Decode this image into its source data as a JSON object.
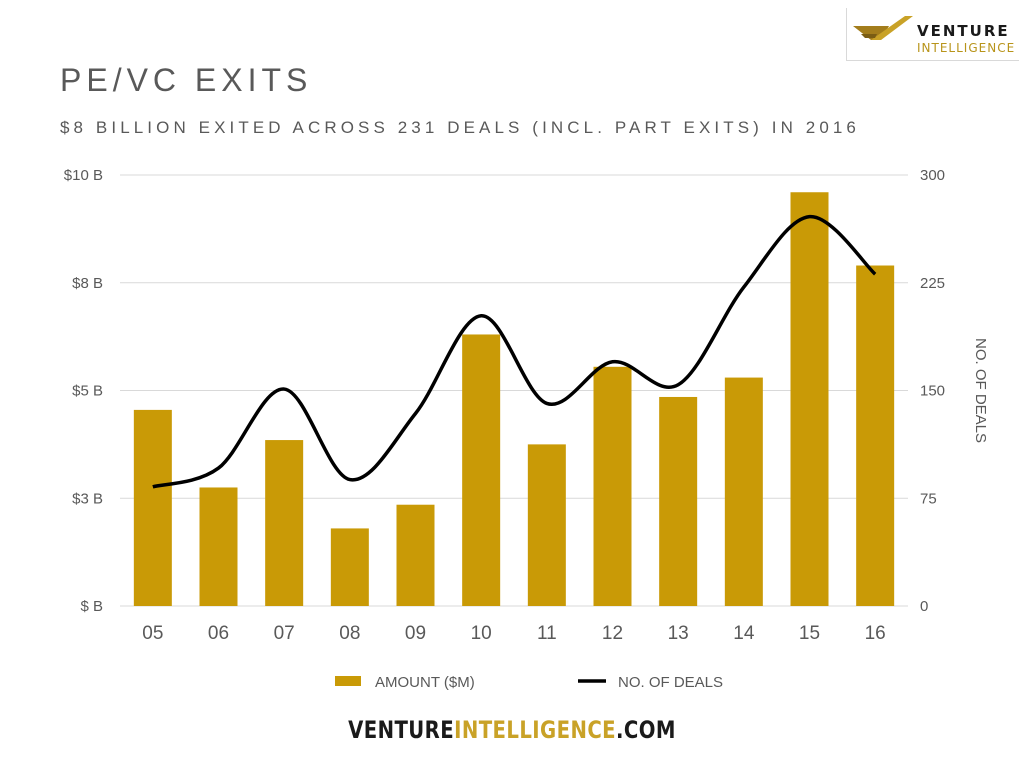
{
  "header": {
    "title": "PE/VC EXITS",
    "subtitle": "$8 BILLION EXITED ACROSS 231 DEALS (INCL. PART EXITS) IN 2016"
  },
  "logo": {
    "line1": "VENTURE",
    "line2": "INTELLIGENCE"
  },
  "footer": {
    "brand_part1": "VENTURE",
    "brand_part2": "INTELLIGENCE",
    "brand_part3": ".COM"
  },
  "colors": {
    "bar": "#C99A06",
    "line": "#000000",
    "grid": "#D9D9D9",
    "text": "#595959"
  },
  "chart_data": {
    "type": "bar",
    "categories": [
      "05",
      "06",
      "07",
      "08",
      "09",
      "10",
      "11",
      "12",
      "13",
      "14",
      "15",
      "16"
    ],
    "series": [
      {
        "name": "AMOUNT ($M)",
        "type": "bar",
        "axis": "left",
        "values": [
          4550,
          2750,
          3850,
          1800,
          2350,
          6300,
          3750,
          5550,
          4850,
          5300,
          9600,
          7900
        ]
      },
      {
        "name": "NO. OF DEALS",
        "type": "line",
        "axis": "right",
        "values": [
          83,
          96,
          151,
          88,
          134,
          202,
          141,
          170,
          154,
          222,
          271,
          231
        ]
      }
    ],
    "y_left": {
      "ticks": [
        0,
        2500,
        5000,
        7500,
        10000
      ],
      "tick_labels": [
        "$ B",
        "$3 B",
        "$5 B",
        "$8 B",
        "$10 B"
      ],
      "ylim": [
        0,
        10000
      ]
    },
    "y_right": {
      "ticks": [
        0,
        75,
        150,
        225,
        300
      ],
      "tick_labels": [
        "0",
        "75",
        "150",
        "225",
        "300"
      ],
      "ylim": [
        0,
        300
      ],
      "label": "NO. OF DEALS"
    },
    "grid": true,
    "legend_position": "bottom"
  }
}
